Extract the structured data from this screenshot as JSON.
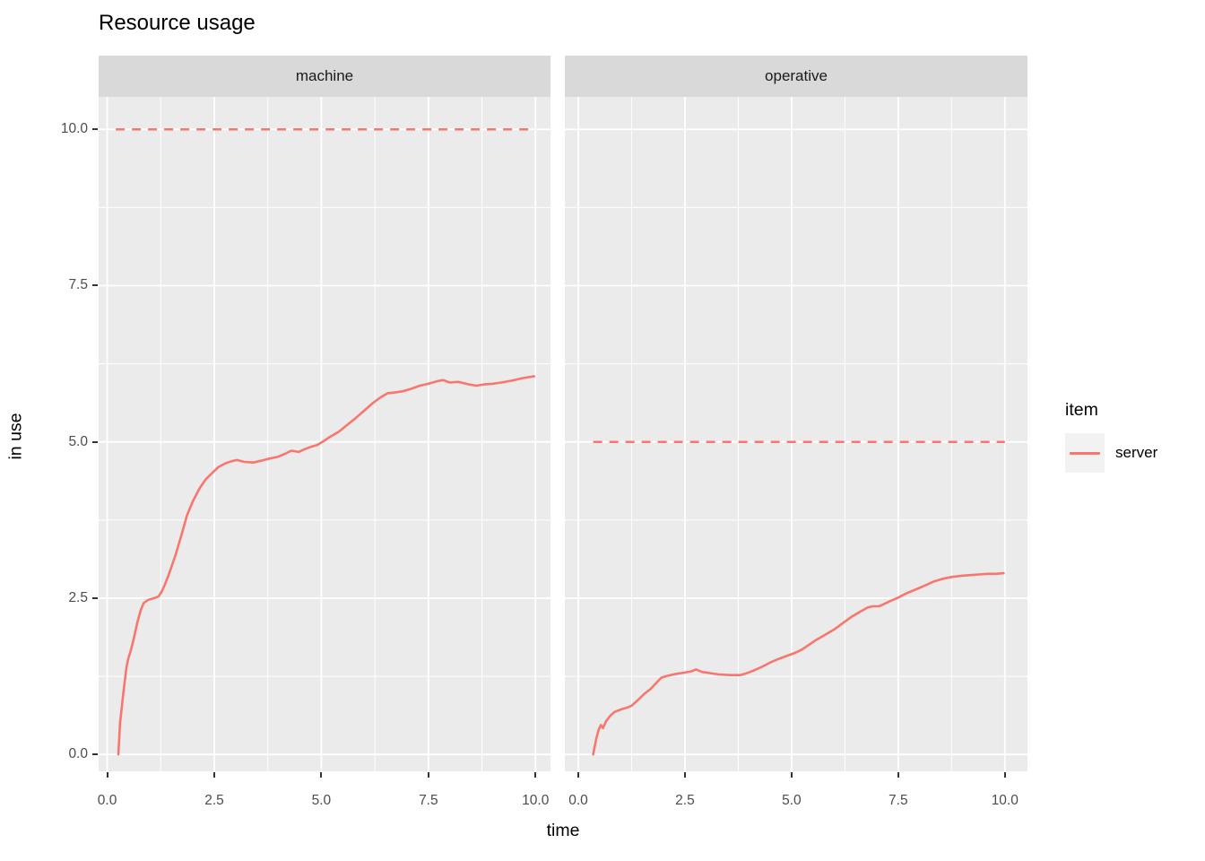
{
  "title": "Resource usage",
  "axis": {
    "x_label": "time",
    "y_label": "in use"
  },
  "legend": {
    "title": "item",
    "entries": [
      {
        "label": "server"
      }
    ]
  },
  "chart_data": {
    "type": "line",
    "title": "Resource usage",
    "xlabel": "time",
    "ylabel": "in use",
    "grid": true,
    "legend_position": "right",
    "series_color": "#F8766D",
    "panel_bg": "#EBEBEB",
    "strip_bg": "#D9D9D9",
    "grid_color": "#FFFFFF",
    "tick_text_color": "#4D4D4D",
    "tick_mark_color": "#333333",
    "x_ticks": [
      0,
      2.5,
      5,
      7.5,
      10
    ],
    "x_tick_labels": [
      "0.0",
      "2.5",
      "5.0",
      "7.5",
      "10.0"
    ],
    "x_minor": [
      1.25,
      3.75,
      6.25,
      8.75
    ],
    "y_ticks": [
      0,
      2.5,
      5,
      7.5,
      10
    ],
    "y_tick_labels": [
      "0.0",
      "2.5",
      "5.0",
      "7.5",
      "10.0"
    ],
    "y_minor": [
      1.25,
      3.75,
      6.25,
      8.75
    ],
    "y_domain": [
      -0.27,
      10.52
    ],
    "facets": [
      {
        "name": "machine",
        "x_domain": [
          -0.2,
          10.35
        ],
        "capacity_line": {
          "value": 10,
          "t_start": 0.2,
          "t_end": 10.0,
          "style": "dashed"
        },
        "series": {
          "name": "server",
          "points": [
            [
              0.26,
              0.0
            ],
            [
              0.3,
              0.5
            ],
            [
              0.38,
              1.0
            ],
            [
              0.45,
              1.4
            ],
            [
              0.5,
              1.55
            ],
            [
              0.55,
              1.66
            ],
            [
              0.62,
              1.85
            ],
            [
              0.7,
              2.1
            ],
            [
              0.78,
              2.3
            ],
            [
              0.85,
              2.42
            ],
            [
              0.95,
              2.47
            ],
            [
              1.1,
              2.5
            ],
            [
              1.2,
              2.53
            ],
            [
              1.27,
              2.6
            ],
            [
              1.35,
              2.72
            ],
            [
              1.45,
              2.9
            ],
            [
              1.6,
              3.2
            ],
            [
              1.75,
              3.55
            ],
            [
              1.86,
              3.82
            ],
            [
              2.0,
              4.05
            ],
            [
              2.15,
              4.25
            ],
            [
              2.3,
              4.4
            ],
            [
              2.46,
              4.51
            ],
            [
              2.6,
              4.6
            ],
            [
              2.77,
              4.66
            ],
            [
              2.9,
              4.69
            ],
            [
              3.03,
              4.71
            ],
            [
              3.2,
              4.68
            ],
            [
              3.41,
              4.67
            ],
            [
              3.6,
              4.7
            ],
            [
              3.77,
              4.73
            ],
            [
              3.98,
              4.76
            ],
            [
              4.15,
              4.81
            ],
            [
              4.3,
              4.86
            ],
            [
              4.47,
              4.84
            ],
            [
              4.6,
              4.88
            ],
            [
              4.75,
              4.92
            ],
            [
              4.9,
              4.95
            ],
            [
              5.05,
              5.01
            ],
            [
              5.2,
              5.08
            ],
            [
              5.4,
              5.16
            ],
            [
              5.6,
              5.27
            ],
            [
              5.8,
              5.38
            ],
            [
              6.0,
              5.5
            ],
            [
              6.2,
              5.62
            ],
            [
              6.4,
              5.72
            ],
            [
              6.55,
              5.78
            ],
            [
              6.7,
              5.79
            ],
            [
              6.9,
              5.81
            ],
            [
              7.1,
              5.85
            ],
            [
              7.3,
              5.9
            ],
            [
              7.5,
              5.93
            ],
            [
              7.7,
              5.97
            ],
            [
              7.84,
              5.99
            ],
            [
              8.0,
              5.95
            ],
            [
              8.2,
              5.96
            ],
            [
              8.45,
              5.92
            ],
            [
              8.62,
              5.9
            ],
            [
              8.8,
              5.92
            ],
            [
              9.0,
              5.93
            ],
            [
              9.2,
              5.95
            ],
            [
              9.45,
              5.98
            ],
            [
              9.7,
              6.02
            ],
            [
              9.97,
              6.05
            ]
          ]
        }
      },
      {
        "name": "operative",
        "x_domain": [
          -0.315,
          10.53
        ],
        "capacity_line": {
          "value": 5,
          "t_start": 0.35,
          "t_end": 10.0,
          "style": "dashed"
        },
        "series": {
          "name": "server",
          "points": [
            [
              0.35,
              0.0
            ],
            [
              0.42,
              0.25
            ],
            [
              0.48,
              0.4
            ],
            [
              0.53,
              0.47
            ],
            [
              0.58,
              0.42
            ],
            [
              0.65,
              0.53
            ],
            [
              0.75,
              0.62
            ],
            [
              0.85,
              0.68
            ],
            [
              1.0,
              0.72
            ],
            [
              1.15,
              0.75
            ],
            [
              1.25,
              0.78
            ],
            [
              1.4,
              0.87
            ],
            [
              1.55,
              0.97
            ],
            [
              1.7,
              1.05
            ],
            [
              1.85,
              1.16
            ],
            [
              1.95,
              1.23
            ],
            [
              2.1,
              1.26
            ],
            [
              2.3,
              1.29
            ],
            [
              2.5,
              1.31
            ],
            [
              2.65,
              1.33
            ],
            [
              2.76,
              1.36
            ],
            [
              2.9,
              1.32
            ],
            [
              3.1,
              1.3
            ],
            [
              3.3,
              1.28
            ],
            [
              3.55,
              1.27
            ],
            [
              3.8,
              1.27
            ],
            [
              3.95,
              1.3
            ],
            [
              4.1,
              1.34
            ],
            [
              4.3,
              1.4
            ],
            [
              4.5,
              1.47
            ],
            [
              4.7,
              1.53
            ],
            [
              4.9,
              1.58
            ],
            [
              5.1,
              1.63
            ],
            [
              5.25,
              1.68
            ],
            [
              5.4,
              1.75
            ],
            [
              5.55,
              1.82
            ],
            [
              5.75,
              1.9
            ],
            [
              6.0,
              2.0
            ],
            [
              6.2,
              2.1
            ],
            [
              6.4,
              2.2
            ],
            [
              6.6,
              2.28
            ],
            [
              6.78,
              2.35
            ],
            [
              6.9,
              2.37
            ],
            [
              7.05,
              2.37
            ],
            [
              7.15,
              2.4
            ],
            [
              7.3,
              2.45
            ],
            [
              7.5,
              2.51
            ],
            [
              7.7,
              2.58
            ],
            [
              7.95,
              2.65
            ],
            [
              8.15,
              2.71
            ],
            [
              8.35,
              2.77
            ],
            [
              8.55,
              2.81
            ],
            [
              8.75,
              2.84
            ],
            [
              9.0,
              2.86
            ],
            [
              9.2,
              2.87
            ],
            [
              9.4,
              2.88
            ],
            [
              9.6,
              2.89
            ],
            [
              9.8,
              2.89
            ],
            [
              9.97,
              2.9
            ]
          ]
        }
      }
    ]
  }
}
